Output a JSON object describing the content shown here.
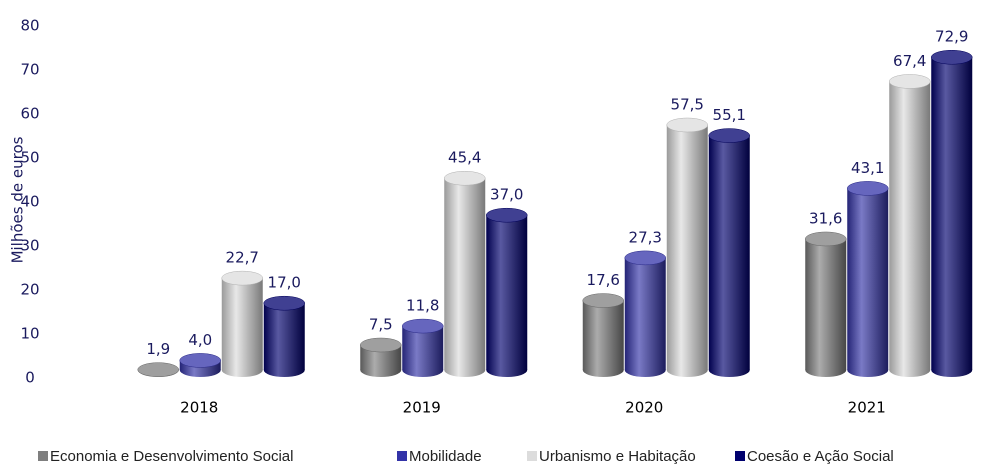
{
  "chart_data": {
    "type": "bar3d",
    "ylabel": "Milhões de euros",
    "categories": [
      "2018",
      "2019",
      "2020",
      "2021"
    ],
    "series": [
      {
        "name": "Economia e Desenvolvimento Social",
        "color": "#7f7f7f",
        "values": [
          1.9,
          7.5,
          17.6,
          31.6
        ],
        "value_labels": [
          "1,9",
          "7,5",
          "17,6",
          "31,6"
        ]
      },
      {
        "name": "Mobilidade",
        "color": "#3333a8",
        "values": [
          4.0,
          11.8,
          27.3,
          43.1
        ],
        "value_labels": [
          "4,0",
          "11,8",
          "27,3",
          "43,1"
        ]
      },
      {
        "name": "Urbanismo e Habitação",
        "color": "#dcdcdc",
        "values": [
          22.7,
          45.4,
          57.5,
          67.4
        ],
        "value_labels": [
          "22,7",
          "45,4",
          "57,5",
          "67,4"
        ]
      },
      {
        "name": "Coesão e Ação Social",
        "color": "#00006e",
        "values": [
          17.0,
          37.0,
          55.1,
          72.9
        ],
        "value_labels": [
          "17,0",
          "37,0",
          "55,1",
          "72,9"
        ]
      }
    ],
    "ylim": [
      0,
      80
    ],
    "yticks": [
      0,
      10,
      20,
      30,
      40,
      50,
      60,
      70,
      80
    ],
    "grid": false
  }
}
